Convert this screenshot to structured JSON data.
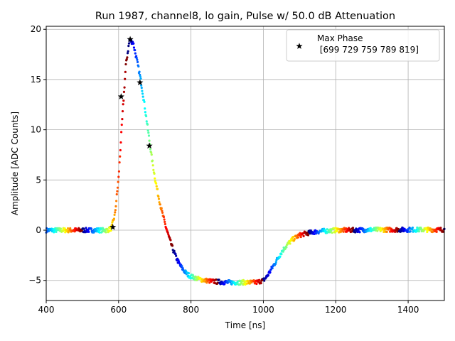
{
  "chart_data": {
    "type": "scatter",
    "title": "Run 1987, channel8, lo gain, Pulse w/ 50.0 dB Attenuation",
    "xlabel": "Time [ns]",
    "ylabel": "Amplitude [ADC Counts]",
    "xlim": [
      400,
      1500
    ],
    "ylim": [
      -7,
      20.3
    ],
    "xticks": [
      400,
      600,
      800,
      1000,
      1200,
      1400
    ],
    "yticks": [
      -5,
      0,
      5,
      10,
      15,
      20
    ],
    "grid": true,
    "colormap": "jet",
    "pulse_shape": {
      "t": [
        400,
        570,
        580,
        590,
        600,
        610,
        620,
        630,
        640,
        650,
        660,
        670,
        680,
        690,
        700,
        710,
        720,
        730,
        740,
        750,
        760,
        770,
        780,
        790,
        800,
        820,
        840,
        860,
        880,
        900,
        920,
        940,
        960,
        980,
        1000,
        1010,
        1020,
        1030,
        1040,
        1050,
        1060,
        1070,
        1080,
        1090,
        1100,
        1120,
        1140,
        1160,
        1180,
        1200,
        1240,
        1300,
        1500
      ],
      "amp": [
        0.0,
        0.0,
        0.2,
        1.6,
        5.2,
        11.0,
        16.4,
        18.9,
        18.7,
        17.0,
        15.2,
        12.9,
        10.3,
        7.6,
        5.3,
        3.4,
        1.8,
        0.4,
        -0.8,
        -1.9,
        -2.8,
        -3.5,
        -4.0,
        -4.4,
        -4.6,
        -4.85,
        -5.0,
        -5.1,
        -5.15,
        -5.2,
        -5.2,
        -5.2,
        -5.2,
        -5.2,
        -5.0,
        -4.6,
        -4.0,
        -3.4,
        -2.8,
        -2.2,
        -1.7,
        -1.3,
        -0.95,
        -0.7,
        -0.5,
        -0.3,
        -0.18,
        -0.1,
        -0.05,
        0.0,
        0.0,
        0.05,
        0.05
      ]
    },
    "legend": {
      "placement": "top-right",
      "entries": [
        {
          "marker": "star",
          "label": "Max Phase\n [699 729 759 789 819]"
        }
      ]
    },
    "max_phase_points": {
      "x": [
        584,
        607,
        632,
        659,
        685
      ],
      "y": [
        0.3,
        13.3,
        19.0,
        14.7,
        8.4
      ]
    }
  }
}
